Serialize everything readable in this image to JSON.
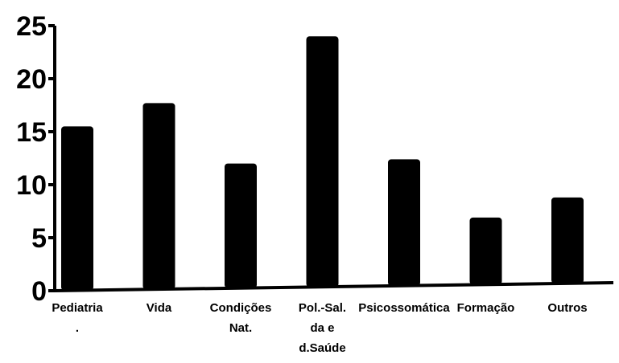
{
  "chart_data": {
    "type": "bar",
    "title": "",
    "xlabel": "",
    "ylabel": "",
    "ylim": [
      0,
      25
    ],
    "yticks": [
      0,
      5,
      10,
      15,
      20,
      25
    ],
    "grid": false,
    "legend": "none",
    "bar_color": "#000000",
    "categories": [
      [
        "Pediatria",
        "."
      ],
      [
        "Vida"
      ],
      [
        "Condições",
        "Nat."
      ],
      [
        "Pol.-Sal.",
        "da e",
        "d.Saúde"
      ],
      [
        "Psicossomática"
      ],
      [
        "Formação"
      ],
      [
        "Outros"
      ]
    ],
    "values": [
      15.5,
      17.7,
      12,
      24,
      12.4,
      6.9,
      8.8
    ]
  }
}
